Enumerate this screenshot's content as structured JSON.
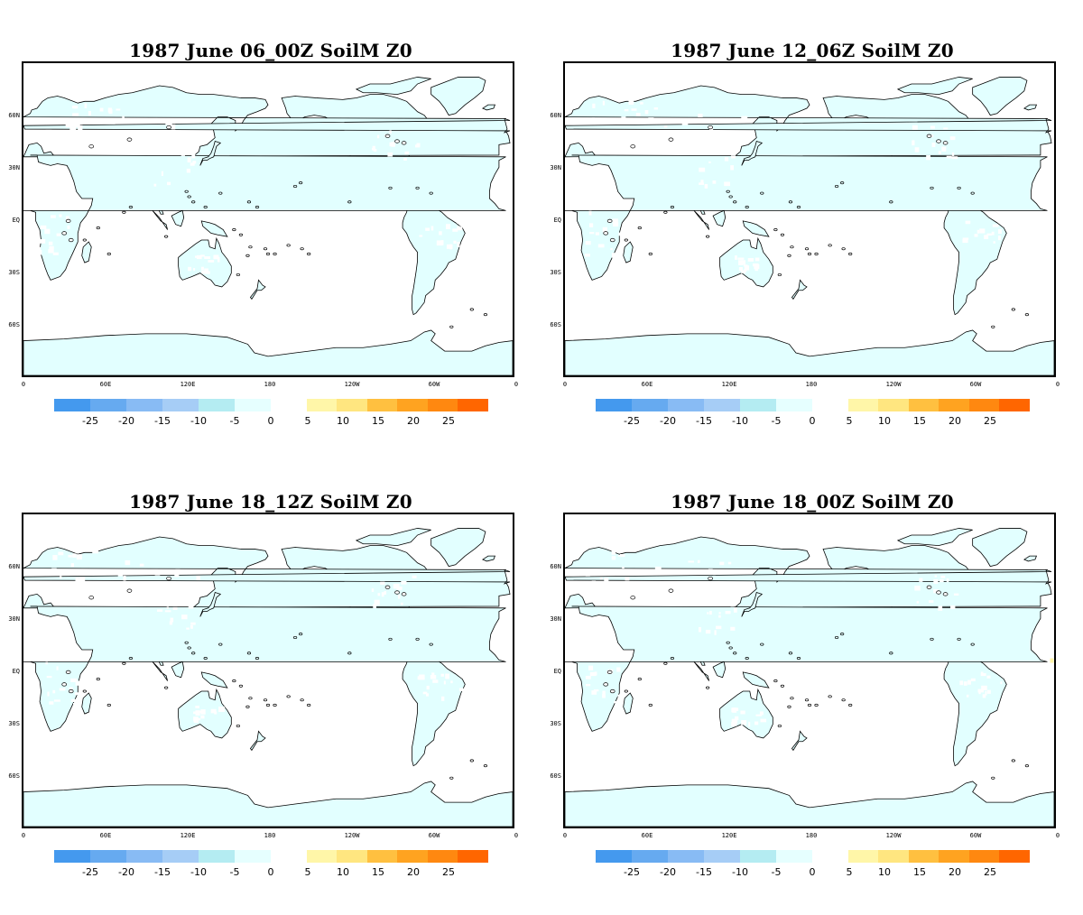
{
  "panels": [
    {
      "title": "1987 June 06_00Z SoilM Z0",
      "highlight": false
    },
    {
      "title": "1987 June 12_06Z SoilM Z0",
      "highlight": false
    },
    {
      "title": "1987 June 18_12Z SoilM Z0",
      "highlight": false
    },
    {
      "title": "1987 June 18_00Z SoilM Z0",
      "highlight": true
    }
  ],
  "lat_labels": [
    "60N",
    "30N",
    "EQ",
    "30S",
    "60S"
  ],
  "lon_labels": [
    "0",
    "60E",
    "120E",
    "180",
    "120W",
    "60W",
    "0"
  ],
  "colorbar": {
    "negative": {
      "colors": [
        "#4499ee",
        "#66aaf0",
        "#88bbf4",
        "#a6cdf6",
        "#b4ecf2",
        "#e6ffff"
      ],
      "ticks": [
        "-25",
        "-20",
        "-15",
        "-10",
        "-5",
        "0"
      ]
    },
    "positive": {
      "colors": [
        "#fff6a8",
        "#ffe680",
        "#ffc040",
        "#ffa320",
        "#ff8810",
        "#ff6600"
      ],
      "ticks": [
        "5",
        "10",
        "15",
        "20",
        "25"
      ]
    }
  },
  "colors": {
    "land_fill": "#e2ffff",
    "coast_line": "#000000",
    "ocean": "#ffffff",
    "highlight_spot": "#fff6a8"
  }
}
